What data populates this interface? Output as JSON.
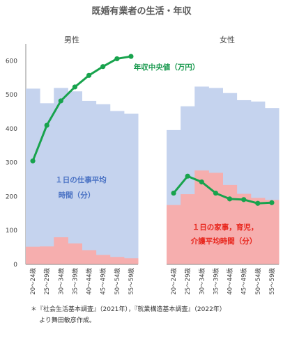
{
  "title": "既婚有業者の生活・年収",
  "source_line1": "＊『社会生活基本調査』（2021年），『就業構造基本調査』（2022年）",
  "source_line2": "より舞田敏彦作成。",
  "colors": {
    "work": "#c5d3ee",
    "housework": "#f6aeae",
    "income": "#18a34d"
  },
  "chart_data": [
    {
      "type": "area",
      "panel_title": "男性",
      "categories": [
        "20～24歳",
        "25～29歳",
        "30～34歳",
        "35～39歳",
        "40～44歳",
        "45～49歳",
        "50～54歳",
        "55～59歳"
      ],
      "ylim": [
        0,
        650
      ],
      "yticks": [
        0,
        100,
        200,
        300,
        400,
        500,
        600
      ],
      "series": [
        {
          "name": "1日の仕事平均時間（分）",
          "kind": "area",
          "values": [
            518,
            475,
            520,
            510,
            482,
            472,
            452,
            444
          ]
        },
        {
          "name": "",
          "kind": "area",
          "values": [
            52,
            53,
            80,
            62,
            42,
            28,
            22,
            18
          ]
        },
        {
          "name": "年収中央値（万円）",
          "kind": "line",
          "values": [
            305,
            410,
            482,
            523,
            557,
            583,
            606,
            613
          ]
        }
      ]
    },
    {
      "type": "area",
      "panel_title": "女性",
      "categories": [
        "20～24歳",
        "25～29歳",
        "30～34歳",
        "35～39歳",
        "40～44歳",
        "45～49歳",
        "50～54歳",
        "55～59歳"
      ],
      "ylim": [
        0,
        650
      ],
      "series": [
        {
          "name": "",
          "kind": "area",
          "values": [
            396,
            466,
            524,
            520,
            505,
            484,
            480,
            461
          ]
        },
        {
          "name": "1日の家事，育児，介護平均時間（分）",
          "kind": "area",
          "values": [
            175,
            207,
            277,
            270,
            234,
            208,
            196,
            190
          ]
        },
        {
          "name": "",
          "kind": "line",
          "values": [
            210,
            260,
            243,
            210,
            193,
            191,
            180,
            182
          ]
        }
      ]
    }
  ],
  "labels": {
    "work_line1": "１日の仕事平均",
    "work_line2": "時間（分）",
    "house_line1": "１日の家事，育児，",
    "house_line2": "介護平均時間（分）",
    "income": "年収中央値（万円）"
  }
}
